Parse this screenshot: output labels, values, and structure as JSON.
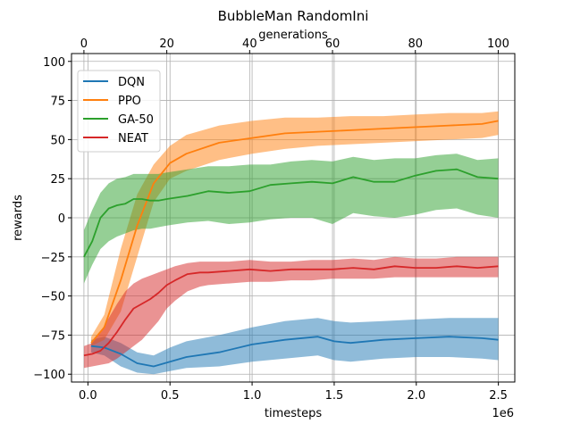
{
  "chart_data": {
    "type": "line",
    "title": "BubbleMan RandomIni",
    "xlabel": "timesteps",
    "x_offset_text": "1e6",
    "ylabel": "rewards",
    "top_xlabel": "generations",
    "xlim": [
      -0.1,
      2.6
    ],
    "ylim": [
      -105,
      105
    ],
    "top_xlim": [
      -3,
      104
    ],
    "x_ticks": [
      0.0,
      0.5,
      1.0,
      1.5,
      2.0,
      2.5
    ],
    "x_tick_labels": [
      "0.0",
      "0.5",
      "1.0",
      "1.5",
      "2.0",
      "2.5"
    ],
    "y_ticks": [
      -100,
      -75,
      -50,
      -25,
      0,
      25,
      50,
      75,
      100
    ],
    "y_tick_labels": [
      "−100",
      "−75",
      "−50",
      "−25",
      "0",
      "25",
      "50",
      "75",
      "100"
    ],
    "top_ticks": [
      0,
      20,
      40,
      60,
      80,
      100
    ],
    "top_tick_labels": [
      "0",
      "20",
      "40",
      "60",
      "80",
      "100"
    ],
    "grid": true,
    "legend_position": "top-left",
    "series": [
      {
        "name": "DQN",
        "color": "#1f77b4",
        "axis": "timesteps",
        "x": [
          0.02,
          0.1,
          0.2,
          0.3,
          0.4,
          0.5,
          0.6,
          0.8,
          1.0,
          1.2,
          1.4,
          1.5,
          1.6,
          1.8,
          2.0,
          2.2,
          2.4,
          2.5
        ],
        "y": [
          -82,
          -83,
          -87,
          -93,
          -95,
          -92,
          -89,
          -86,
          -81,
          -78,
          -76,
          -79,
          -80,
          -78,
          -77,
          -76,
          -77,
          -78
        ],
        "low": [
          -86,
          -88,
          -95,
          -99,
          -100,
          -98,
          -96,
          -95,
          -92,
          -90,
          -88,
          -91,
          -92,
          -90,
          -89,
          -89,
          -90,
          -91
        ],
        "high": [
          -78,
          -76,
          -80,
          -86,
          -88,
          -83,
          -79,
          -75,
          -70,
          -66,
          -64,
          -66,
          -67,
          -66,
          -65,
          -64,
          -64,
          -64
        ]
      },
      {
        "name": "PPO",
        "color": "#ff7f0e",
        "axis": "timesteps",
        "x": [
          0.02,
          0.1,
          0.2,
          0.3,
          0.4,
          0.5,
          0.6,
          0.8,
          1.0,
          1.2,
          1.4,
          1.6,
          1.8,
          2.0,
          2.2,
          2.4,
          2.5
        ],
        "y": [
          -80,
          -70,
          -40,
          -5,
          22,
          35,
          41,
          48,
          51,
          54,
          55,
          56,
          57,
          58,
          59,
          60,
          62
        ],
        "low": [
          -82,
          -78,
          -60,
          -25,
          10,
          25,
          30,
          37,
          41,
          44,
          46,
          47,
          48,
          49,
          50,
          51,
          53
        ],
        "high": [
          -76,
          -62,
          -20,
          15,
          34,
          46,
          53,
          59,
          62,
          64,
          64,
          65,
          65,
          66,
          67,
          67,
          68
        ]
      },
      {
        "name": "GA-50",
        "color": "#2ca02c",
        "axis": "generations",
        "x": [
          0,
          2,
          4,
          6,
          8,
          10,
          12,
          14,
          16,
          18,
          20,
          25,
          30,
          35,
          40,
          45,
          50,
          55,
          60,
          65,
          70,
          75,
          80,
          85,
          90,
          95,
          100
        ],
        "y": [
          -25,
          -15,
          0,
          6,
          8,
          9,
          12,
          12,
          11,
          11,
          12,
          14,
          17,
          16,
          17,
          21,
          22,
          23,
          22,
          26,
          23,
          23,
          27,
          30,
          31,
          26,
          25
        ],
        "low": [
          -42,
          -30,
          -20,
          -15,
          -12,
          -10,
          -8,
          -7,
          -7,
          -6,
          -5,
          -3,
          -2,
          -4,
          -3,
          -1,
          0,
          0,
          -4,
          3,
          1,
          0,
          2,
          5,
          6,
          2,
          0
        ],
        "high": [
          -8,
          5,
          16,
          22,
          25,
          26,
          28,
          28,
          28,
          28,
          29,
          31,
          33,
          33,
          34,
          34,
          36,
          37,
          36,
          39,
          37,
          38,
          38,
          40,
          41,
          37,
          38
        ]
      },
      {
        "name": "NEAT",
        "color": "#d62728",
        "axis": "generations",
        "x": [
          0,
          2,
          4,
          6,
          8,
          10,
          12,
          14,
          16,
          18,
          20,
          22,
          25,
          28,
          30,
          35,
          40,
          45,
          50,
          55,
          60,
          65,
          70,
          75,
          80,
          85,
          90,
          95,
          100
        ],
        "y": [
          -88,
          -87,
          -85,
          -80,
          -73,
          -65,
          -58,
          -55,
          -52,
          -48,
          -43,
          -40,
          -36,
          -35,
          -35,
          -34,
          -33,
          -34,
          -33,
          -33,
          -33,
          -32,
          -33,
          -31,
          -32,
          -32,
          -31,
          -32,
          -31
        ],
        "low": [
          -96,
          -95,
          -94,
          -93,
          -90,
          -86,
          -82,
          -78,
          -72,
          -66,
          -58,
          -53,
          -47,
          -44,
          -43,
          -42,
          -41,
          -41,
          -40,
          -40,
          -39,
          -39,
          -39,
          -38,
          -38,
          -38,
          -38,
          -38,
          -38
        ],
        "high": [
          -82,
          -80,
          -73,
          -64,
          -55,
          -47,
          -42,
          -39,
          -37,
          -35,
          -33,
          -31,
          -29,
          -28,
          -28,
          -28,
          -27,
          -28,
          -28,
          -27,
          -27,
          -26,
          -27,
          -25,
          -26,
          -26,
          -25,
          -25,
          -25
        ]
      }
    ]
  }
}
